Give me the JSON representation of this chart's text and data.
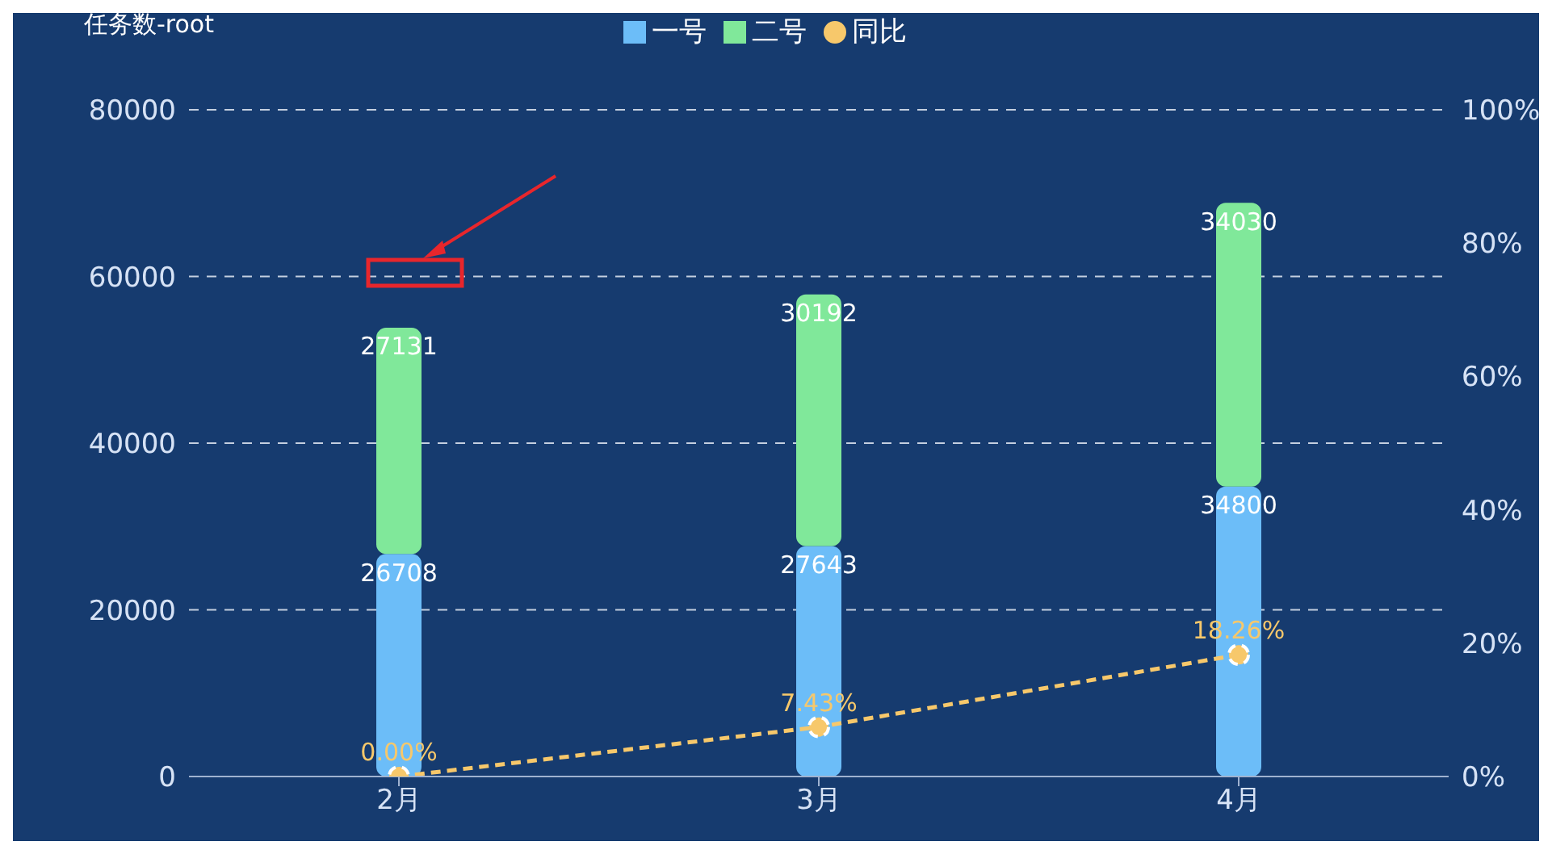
{
  "chart_data": {
    "type": "bar",
    "stacked": true,
    "ylabel": "任务数-root",
    "categories": [
      "2月",
      "3月",
      "4月"
    ],
    "series": [
      {
        "name": "一号",
        "color": "#6cbdf8",
        "values": [
          26708,
          27643,
          34800
        ]
      },
      {
        "name": "二号",
        "color": "#80e89a",
        "values": [
          27131,
          30192,
          34030
        ]
      },
      {
        "name": "同比",
        "type": "line",
        "axis": "y2",
        "color": "#f7c86b",
        "values": [
          0,
          7.43,
          18.26
        ],
        "value_labels": [
          "0.00%",
          "7.43%",
          "18.26%"
        ]
      }
    ],
    "ylim": [
      0,
      80000
    ],
    "yticks": [
      0,
      20000,
      40000,
      60000,
      80000
    ],
    "y2lim": [
      0,
      100
    ],
    "y2ticks": [
      {
        "value": 0,
        "label": "0%"
      },
      {
        "value": 20,
        "label": "20%"
      },
      {
        "value": 40,
        "label": "40%"
      },
      {
        "value": 60,
        "label": "60%"
      },
      {
        "value": 80,
        "label": "80%"
      },
      {
        "value": 100,
        "label": "100%"
      }
    ],
    "data_labels": true,
    "grid": "y",
    "legend": "top",
    "marker": "circle",
    "line_style": "dashed"
  }
}
